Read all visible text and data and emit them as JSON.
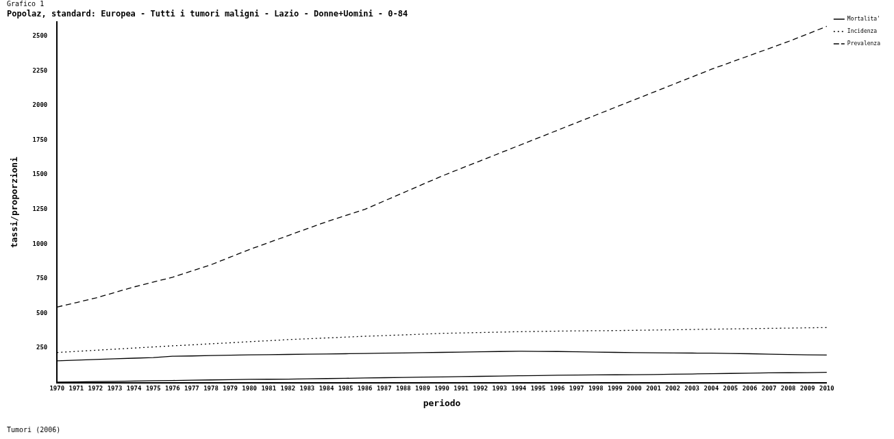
{
  "chart_data": {
    "type": "line",
    "title": "Popolaz, standard: Europea - Tutti i tumori maligni - Lazio - Donne+Uomini - 0-84",
    "xlabel": "periodo",
    "ylabel": "tassi/proporzioni",
    "categories": [
      "1970",
      "1971",
      "1972",
      "1973",
      "1974",
      "1975",
      "1976",
      "1977",
      "1978",
      "1979",
      "1980",
      "1981",
      "1982",
      "1983",
      "1984",
      "1985",
      "1986",
      "1987",
      "1988",
      "1989",
      "1990",
      "1991",
      "1992",
      "1993",
      "1994",
      "1995",
      "1996",
      "1997",
      "1998",
      "1999",
      "2000",
      "2001",
      "2002",
      "2003",
      "2004",
      "2005",
      "2006",
      "2007",
      "2008",
      "2009",
      "2010"
    ],
    "series": [
      {
        "name": "Mortalita'",
        "color": "#000000",
        "line_style": "solid",
        "values": [
          157,
          162,
          167,
          172,
          176,
          180,
          190,
          192,
          195,
          198,
          200,
          201,
          203,
          205,
          206,
          208,
          210,
          212,
          214,
          216,
          218,
          220,
          222,
          224,
          226,
          225,
          224,
          222,
          220,
          218,
          216,
          215,
          214,
          213,
          212,
          210,
          208,
          205,
          202,
          200,
          199
        ]
      },
      {
        "name": "Incidenza",
        "color": "#000000",
        "line_style": "dotted",
        "values": [
          217,
          225,
          233,
          241,
          249,
          257,
          265,
          272,
          280,
          287,
          295,
          302,
          310,
          316,
          322,
          328,
          334,
          339,
          344,
          349,
          355,
          358,
          361,
          364,
          367,
          369,
          371,
          373,
          374,
          375,
          377,
          379,
          381,
          383,
          385,
          387,
          389,
          391,
          393,
          395,
          397
        ]
      },
      {
        "name": "Prevalenza",
        "color": "#000000",
        "line_style": "dashed",
        "values": [
          545,
          577,
          610,
          650,
          690,
          725,
          760,
          805,
          850,
          905,
          960,
          1010,
          1060,
          1110,
          1160,
          1205,
          1250,
          1310,
          1370,
          1430,
          1490,
          1545,
          1600,
          1655,
          1710,
          1765,
          1820,
          1875,
          1930,
          1985,
          2040,
          2095,
          2150,
          2205,
          2260,
          2310,
          2360,
          2410,
          2460,
          2515,
          2570
        ]
      },
      {
        "color": "#000000",
        "line_style": "solid",
        "values": [
          3,
          5,
          7,
          9,
          11,
          13,
          15,
          17,
          19,
          21,
          23,
          24,
          25,
          27,
          29,
          31,
          33,
          35,
          37,
          39,
          41,
          43,
          45,
          47,
          49,
          51,
          53,
          54,
          55,
          56,
          57,
          58,
          60,
          62,
          64,
          66,
          68,
          70,
          71,
          72,
          74
        ]
      }
    ],
    "ylim": [
      0,
      2600
    ],
    "yticks": [
      250,
      500,
      750,
      1000,
      1250,
      1500,
      1750,
      2000,
      2250,
      2500
    ],
    "grid": false,
    "legend": "top right",
    "marker": "none",
    "annotations": [
      "Grafico 1",
      "Tumori (2006)"
    ]
  }
}
